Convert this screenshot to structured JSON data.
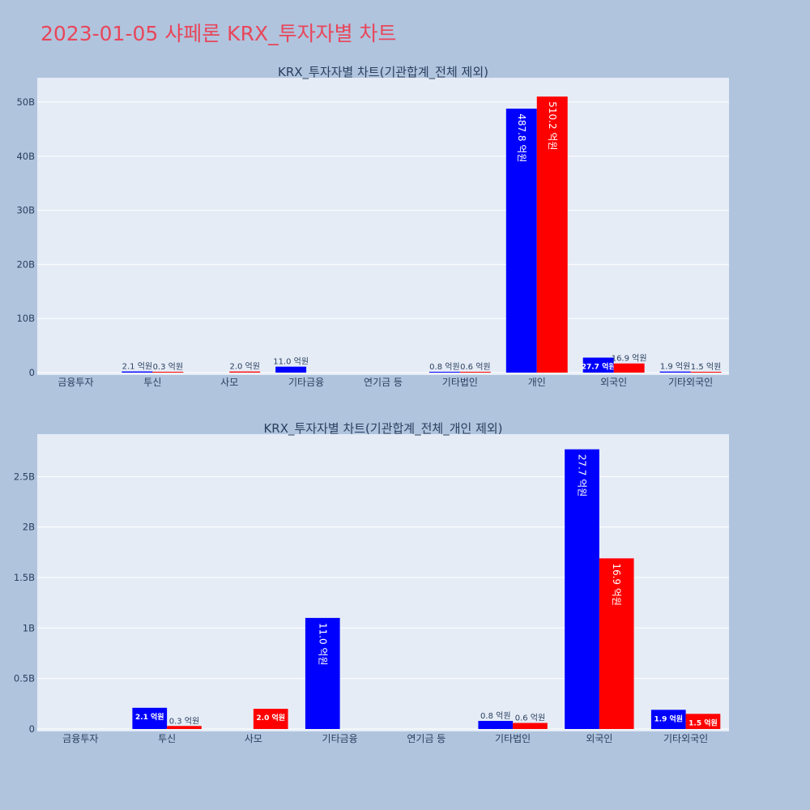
{
  "header": {
    "title": "2023-01-05 샤페론 KRX_투자자별 차트"
  },
  "colors": {
    "buy": "#0000ff",
    "sell": "#ff0000",
    "plot_bg": "#e5ecf6",
    "page_bg": "#b0c4de",
    "title": "#e8465a"
  },
  "chart_data": [
    {
      "type": "bar",
      "title": "KRX_투자자별 차트(기관합계_전체 제외)",
      "categories": [
        "금융투자",
        "투신",
        "사모",
        "기타금융",
        "연기금 등",
        "기타법인",
        "개인",
        "외국인",
        "기타외국인"
      ],
      "series": [
        {
          "values": [
            0,
            210000000,
            0,
            1100000000,
            0,
            80000000,
            48780000000,
            2770000000,
            190000000
          ],
          "labels": [
            "",
            "2.1 억원",
            "",
            "11.0 억원",
            "",
            "0.8 억원",
            "487.8 억원",
            "27.7 억원",
            "1.9 억원"
          ]
        },
        {
          "values": [
            0,
            30000000,
            200000000,
            0,
            0,
            60000000,
            51020000000,
            1690000000,
            150000000
          ],
          "labels": [
            "",
            "0.3 억원",
            "2.0 억원",
            "",
            "",
            "0.6 억원",
            "510.2 억원",
            "16.9 억원",
            "1.5 억원"
          ]
        }
      ],
      "yticks": [
        0,
        10000000000,
        20000000000,
        30000000000,
        40000000000,
        50000000000
      ],
      "yticklabels": [
        "0",
        "10B",
        "20B",
        "30B",
        "40B",
        "50B"
      ],
      "ylim": [
        0,
        54500000000
      ],
      "grid": true
    },
    {
      "type": "bar",
      "title": "KRX_투자자별 차트(기관합계_전체_개인 제외)",
      "categories": [
        "금융투자",
        "투신",
        "사모",
        "기타금융",
        "연기금 등",
        "기타법인",
        "외국인",
        "기타외국인"
      ],
      "series": [
        {
          "values": [
            0,
            210000000,
            0,
            1100000000,
            0,
            80000000,
            2770000000,
            190000000
          ],
          "labels": [
            "",
            "2.1 억원",
            "",
            "11.0 억원",
            "",
            "0.8 억원",
            "27.7 억원",
            "1.9 억원"
          ]
        },
        {
          "values": [
            0,
            30000000,
            200000000,
            0,
            0,
            60000000,
            1690000000,
            150000000
          ],
          "labels": [
            "",
            "0.3 억원",
            "2.0 억원",
            "",
            "",
            "0.6 억원",
            "16.9 억원",
            "1.5 억원"
          ]
        }
      ],
      "yticks": [
        0,
        500000000,
        1000000000,
        1500000000,
        2000000000,
        2500000000
      ],
      "yticklabels": [
        "0",
        "0.5B",
        "1B",
        "1.5B",
        "2B",
        "2.5B"
      ],
      "ylim": [
        0,
        2920000000
      ],
      "grid": true
    }
  ]
}
